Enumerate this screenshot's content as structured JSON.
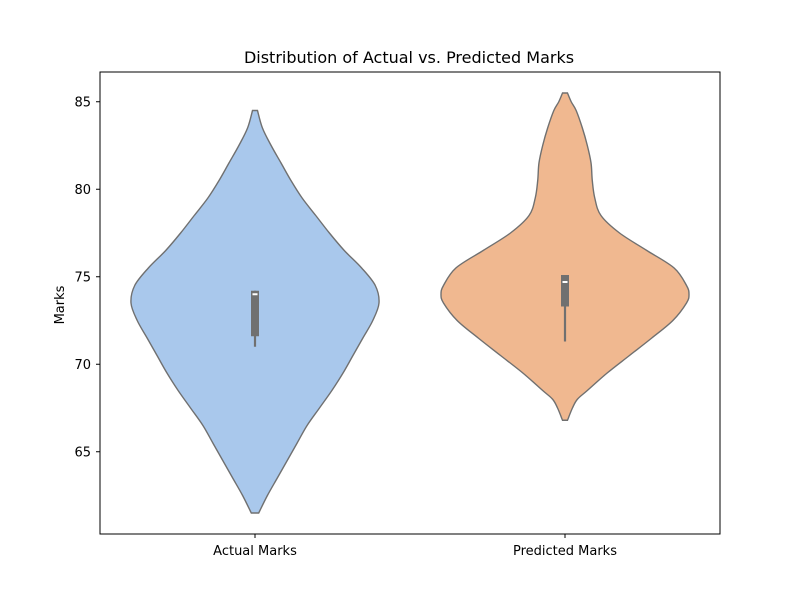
{
  "chart_data": {
    "type": "violin",
    "title": "Distribution of Actual vs. Predicted Marks",
    "xlabel": "",
    "ylabel": "Marks",
    "ylim": [
      60.3,
      86.7
    ],
    "yticks": [
      65,
      70,
      75,
      80,
      85
    ],
    "categories": [
      "Actual Marks",
      "Predicted Marks"
    ],
    "grid": false,
    "legend": "none",
    "series": [
      {
        "category": "Actual Marks",
        "color": "#a9c8ec",
        "min": 61.5,
        "max": 84.5,
        "q1": 71.6,
        "median": 74.0,
        "q3": 74.2,
        "whisker_low": 71.0,
        "whisker_high": 74.2,
        "density": [
          [
            61.5,
            0.03
          ],
          [
            62.5,
            0.1
          ],
          [
            63.5,
            0.18
          ],
          [
            64.5,
            0.26
          ],
          [
            65.5,
            0.34
          ],
          [
            66.5,
            0.42
          ],
          [
            67.5,
            0.52
          ],
          [
            68.5,
            0.62
          ],
          [
            69.5,
            0.71
          ],
          [
            70.5,
            0.79
          ],
          [
            71.5,
            0.87
          ],
          [
            72.5,
            0.95
          ],
          [
            73.5,
            1.0
          ],
          [
            74.5,
            0.97
          ],
          [
            75.5,
            0.86
          ],
          [
            76.5,
            0.72
          ],
          [
            77.5,
            0.6
          ],
          [
            78.5,
            0.49
          ],
          [
            79.5,
            0.38
          ],
          [
            80.5,
            0.29
          ],
          [
            81.5,
            0.21
          ],
          [
            82.5,
            0.13
          ],
          [
            83.5,
            0.06
          ],
          [
            84.5,
            0.02
          ]
        ]
      },
      {
        "category": "Predicted Marks",
        "color": "#f0b890",
        "min": 66.8,
        "max": 85.5,
        "q1": 73.3,
        "median": 74.7,
        "q3": 75.1,
        "whisker_low": 71.3,
        "whisker_high": 75.1,
        "density": [
          [
            66.8,
            0.02
          ],
          [
            67.5,
            0.06
          ],
          [
            68.0,
            0.1
          ],
          [
            68.5,
            0.18
          ],
          [
            69.5,
            0.34
          ],
          [
            70.5,
            0.52
          ],
          [
            71.5,
            0.7
          ],
          [
            72.5,
            0.87
          ],
          [
            73.5,
            0.98
          ],
          [
            74.0,
            1.0
          ],
          [
            74.5,
            0.98
          ],
          [
            75.5,
            0.88
          ],
          [
            76.5,
            0.66
          ],
          [
            77.5,
            0.44
          ],
          [
            78.5,
            0.29
          ],
          [
            79.5,
            0.24
          ],
          [
            80.5,
            0.22
          ],
          [
            81.5,
            0.21
          ],
          [
            82.5,
            0.18
          ],
          [
            83.5,
            0.14
          ],
          [
            84.5,
            0.09
          ],
          [
            85.0,
            0.05
          ],
          [
            85.5,
            0.02
          ]
        ]
      }
    ]
  }
}
